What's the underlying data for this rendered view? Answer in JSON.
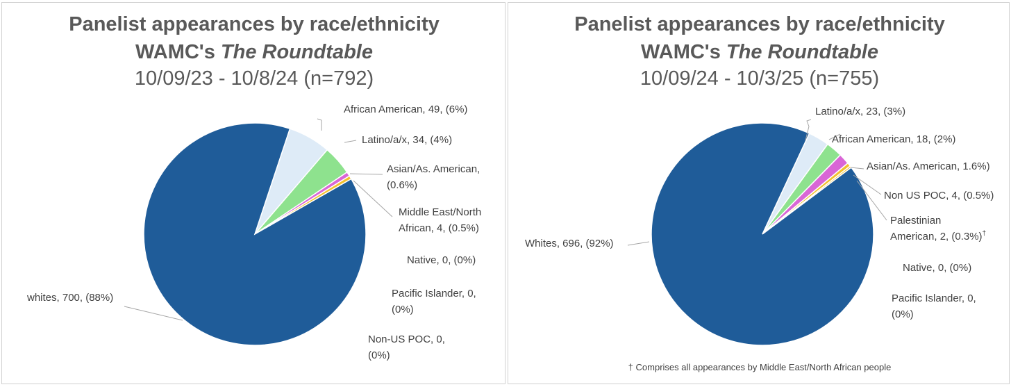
{
  "chart_data": [
    {
      "type": "pie",
      "title_line1": "Panelist appearances by race/ethnicity",
      "title_line2_prefix": "WAMC's ",
      "title_line2_italic": "The Roundtable",
      "subtitle": "10/09/23 - 10/8/24 (n=792)",
      "start_angle_deg": 18.4,
      "slices": [
        {
          "name": "African American",
          "value": 49,
          "color": "#deebf7"
        },
        {
          "name": "Latino/a/x",
          "value": 34,
          "color": "#8ee28e"
        },
        {
          "name": "Asian/As. American",
          "value": 5,
          "color": "#d966d6"
        },
        {
          "name": "Middle East/North African",
          "value": 4,
          "color": "#f2c12e"
        },
        {
          "name": "Native",
          "value": 0,
          "color": "#ffffff"
        },
        {
          "name": "Pacific Islander",
          "value": 0,
          "color": "#ffffff"
        },
        {
          "name": "Non-US POC",
          "value": 0,
          "color": "#ffffff"
        },
        {
          "name": "whites",
          "value": 700,
          "color": "#1f5c99"
        }
      ],
      "labels": [
        {
          "lines": [
            "African American, 49, (6%)"
          ]
        },
        {
          "lines": [
            "Latino/a/x, 34, (4%)"
          ]
        },
        {
          "lines": [
            "Asian/As. American,",
            "(0.6%)"
          ]
        },
        {
          "lines": [
            "Middle East/North",
            "African, 4, (0.5%)"
          ]
        },
        {
          "lines": [
            "Native, 0, (0%)"
          ]
        },
        {
          "lines": [
            "Pacific Islander, 0,",
            "(0%)"
          ]
        },
        {
          "lines": [
            "Non-US POC, 0,",
            "(0%)"
          ]
        },
        {
          "lines": [
            "whites, 700, (88%)"
          ]
        }
      ],
      "footnote": ""
    },
    {
      "type": "pie",
      "title_line1": "Panelist appearances by race/ethnicity",
      "title_line2_prefix": "WAMC's ",
      "title_line2_italic": "The Roundtable",
      "subtitle": "10/09/24 - 10/3/25 (n=755)",
      "start_angle_deg": 25,
      "slices": [
        {
          "name": "Latino/a/x",
          "value": 23,
          "color": "#deebf7"
        },
        {
          "name": "African American",
          "value": 18,
          "color": "#8ee28e"
        },
        {
          "name": "Asian/As. American",
          "value": 12,
          "color": "#d966d6"
        },
        {
          "name": "Non US POC",
          "value": 4,
          "color": "#f2c12e"
        },
        {
          "name": "Palestinian American",
          "value": 2,
          "color": "#f2c12e"
        },
        {
          "name": "Native",
          "value": 0,
          "color": "#ffffff"
        },
        {
          "name": "Pacific Islander",
          "value": 0,
          "color": "#ffffff"
        },
        {
          "name": "Whites",
          "value": 696,
          "color": "#1f5c99"
        }
      ],
      "labels": [
        {
          "lines": [
            "Latino/a/x, 23, (3%)"
          ]
        },
        {
          "lines": [
            "African American, 18, (2%)"
          ]
        },
        {
          "lines": [
            "Asian/As. American, 1.6%)"
          ]
        },
        {
          "lines": [
            "Non US POC, 4, (0.5%)"
          ]
        },
        {
          "lines": [
            "Palestinian",
            "American, 2, (0.3%)"
          ],
          "sup": "†"
        },
        {
          "lines": [
            "Native, 0, (0%)"
          ]
        },
        {
          "lines": [
            "Pacific Islander, 0,",
            "(0%)"
          ]
        },
        {
          "lines": [
            "Whites, 696, (92%)"
          ]
        }
      ],
      "footnote": "† Comprises all appearances by Middle East/North African people"
    }
  ]
}
